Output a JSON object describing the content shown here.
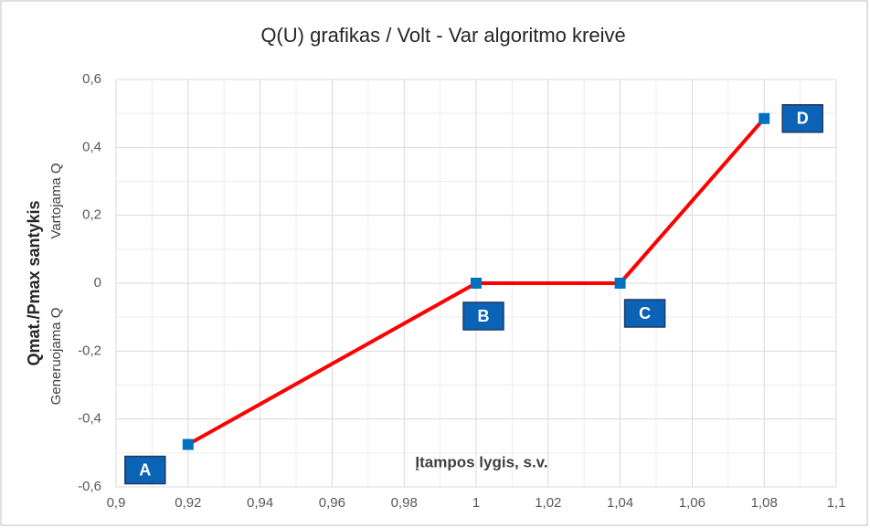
{
  "chart_data": {
    "type": "line",
    "title": "Q(U) grafikas / Volt - Var algoritmo kreivė",
    "x_label": "Įtampos lygis, s.v.",
    "y_label": "Qmat./Pmax santykis",
    "y_label_negative": "Generuojama Q",
    "y_label_positive": "Vartojama Q",
    "x": [
      0.92,
      1,
      1.04,
      1.08
    ],
    "series": [
      {
        "name": null,
        "color": "#ff0000",
        "marker_color": "#0070c0",
        "values": [
          -0.475,
          0,
          0,
          0.485
        ]
      }
    ],
    "point_labels": [
      "A",
      "B",
      "C",
      "D"
    ],
    "xlim": [
      0.9,
      1.1
    ],
    "xticks": [
      {
        "value": 0.9,
        "label": "0,9"
      },
      {
        "value": 0.92,
        "label": "0,92"
      },
      {
        "value": 0.94,
        "label": "0,94"
      },
      {
        "value": 0.96,
        "label": "0,96"
      },
      {
        "value": 0.98,
        "label": "0,98"
      },
      1,
      {
        "value": 1.02,
        "label": "1,02"
      },
      {
        "value": 1.04,
        "label": "1,04"
      },
      {
        "value": 1.06,
        "label": "1,06"
      },
      {
        "value": 1.08,
        "label": "1,08"
      },
      {
        "value": 1.1,
        "label": "1,1"
      }
    ],
    "ylim": [
      -0.6,
      0.6
    ],
    "yticks": [
      {
        "value": -0.6,
        "label": "-0,6"
      },
      {
        "value": -0.4,
        "label": "-0,4"
      },
      {
        "value": -0.2,
        "label": "-0,2"
      },
      0,
      {
        "value": 0.2,
        "label": "0,2"
      },
      {
        "value": 0.4,
        "label": "0,4"
      },
      {
        "value": 0.6,
        "label": "0,6"
      }
    ],
    "grid": true,
    "minor_grid": true
  }
}
